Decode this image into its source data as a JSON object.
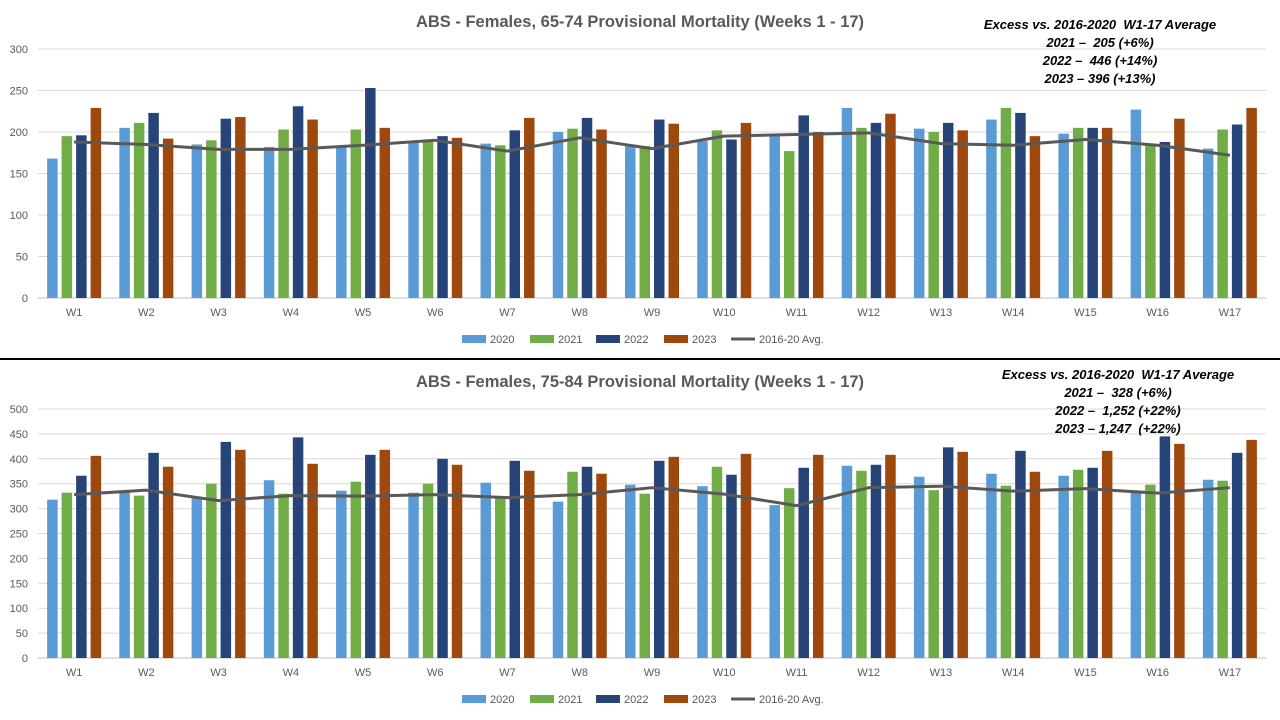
{
  "colors": {
    "2020": "#5b9bd5",
    "2021": "#70ad47",
    "2022": "#264478",
    "2023": "#9e480e",
    "avg": "#595959",
    "grid": "#d9d9d9"
  },
  "chart_data": [
    {
      "type": "bar",
      "title": "ABS - Females, 65-74 Provisional Mortality (Weeks 1 - 17)",
      "categories": [
        "W1",
        "W2",
        "W3",
        "W4",
        "W5",
        "W6",
        "W7",
        "W8",
        "W9",
        "W10",
        "W11",
        "W12",
        "W13",
        "W14",
        "W15",
        "W16",
        "W17"
      ],
      "ylim": [
        0,
        300
      ],
      "yticks": [
        0,
        50,
        100,
        150,
        200,
        250,
        300
      ],
      "grid": true,
      "legend_position": "bottom",
      "series": [
        {
          "name": "2020",
          "kind": "bar",
          "values": [
            168,
            205,
            185,
            182,
            183,
            187,
            186,
            200,
            185,
            189,
            195,
            229,
            204,
            215,
            198,
            227,
            180
          ]
        },
        {
          "name": "2021",
          "kind": "bar",
          "values": [
            195,
            211,
            190,
            203,
            203,
            190,
            184,
            204,
            183,
            202,
            177,
            205,
            200,
            229,
            205,
            185,
            203
          ]
        },
        {
          "name": "2022",
          "kind": "bar",
          "values": [
            196,
            223,
            216,
            231,
            253,
            195,
            202,
            217,
            215,
            191,
            220,
            211,
            211,
            223,
            205,
            188,
            209
          ]
        },
        {
          "name": "2023",
          "kind": "bar",
          "values": [
            229,
            192,
            218,
            215,
            205,
            193,
            217,
            203,
            210,
            211,
            200,
            222,
            202,
            195,
            205,
            216,
            229
          ]
        },
        {
          "name": "2016-20 Avg.",
          "kind": "line",
          "values": [
            188,
            185,
            179,
            179,
            184,
            190,
            177,
            193,
            180,
            195,
            197,
            199,
            186,
            184,
            191,
            184,
            172
          ]
        }
      ],
      "annotation": [
        "Excess vs. 2016-2020  W1-17 Average",
        "2021 –  205 (+6%)",
        "2022 –  446 (+14%)",
        "2023 – 396 (+13%)"
      ]
    },
    {
      "type": "bar",
      "title": "ABS - Females, 75-84 Provisional Mortality (Weeks 1 - 17)",
      "categories": [
        "W1",
        "W2",
        "W3",
        "W4",
        "W5",
        "W6",
        "W7",
        "W8",
        "W9",
        "W10",
        "W11",
        "W12",
        "W13",
        "W14",
        "W15",
        "W16",
        "W17"
      ],
      "ylim": [
        0,
        500
      ],
      "yticks": [
        0,
        50,
        100,
        150,
        200,
        250,
        300,
        350,
        400,
        450,
        500
      ],
      "grid": true,
      "legend_position": "bottom",
      "series": [
        {
          "name": "2020",
          "kind": "bar",
          "values": [
            318,
            333,
            322,
            357,
            336,
            332,
            352,
            314,
            348,
            345,
            307,
            386,
            364,
            370,
            366,
            336,
            358
          ]
        },
        {
          "name": "2021",
          "kind": "bar",
          "values": [
            332,
            326,
            350,
            330,
            354,
            350,
            325,
            374,
            330,
            384,
            341,
            376,
            337,
            346,
            378,
            348,
            356
          ]
        },
        {
          "name": "2022",
          "kind": "bar",
          "values": [
            366,
            412,
            434,
            443,
            408,
            400,
            396,
            384,
            396,
            368,
            382,
            388,
            423,
            416,
            382,
            445,
            412
          ]
        },
        {
          "name": "2023",
          "kind": "bar",
          "values": [
            406,
            384,
            418,
            390,
            418,
            388,
            376,
            370,
            404,
            410,
            408,
            408,
            414,
            374,
            416,
            430,
            438
          ]
        },
        {
          "name": "2016-20 Avg.",
          "kind": "line",
          "values": [
            328,
            337,
            316,
            326,
            325,
            328,
            322,
            328,
            342,
            329,
            306,
            342,
            345,
            335,
            340,
            331,
            342
          ]
        }
      ],
      "annotation": [
        "Excess vs. 2016-2020  W1-17 Average",
        "2021 –  328 (+6%)",
        "2022 –  1,252 (+22%)",
        "2023 – 1,247  (+22%)"
      ]
    }
  ]
}
